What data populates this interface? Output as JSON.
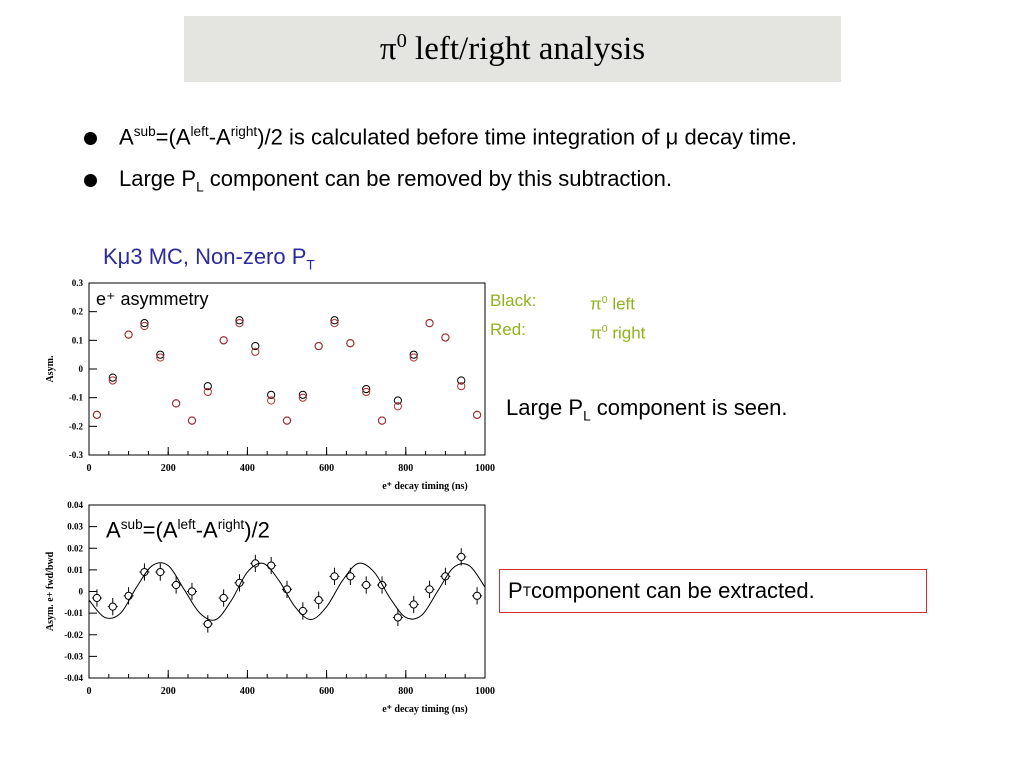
{
  "title": {
    "symbol": "π",
    "sup": "0",
    "text": " left/right analysis"
  },
  "bullets": [
    {
      "a": "A",
      "sub_sup": "sub",
      "b": "=(A",
      "left_sup": "left",
      "c": "-A",
      "right_sup": "right",
      "d": ")/2  is calculated before time integration of ",
      "mu": "μ",
      "e": " decay time."
    },
    {
      "a": "Large P",
      "sub": "L",
      "b": " component can be removed by this subtraction."
    }
  ],
  "mc_label": {
    "a": "Kμ3 MC, Non-zero P",
    "sub": "T"
  },
  "legend": {
    "black_key": "Black:",
    "black_sym": "π",
    "black_sup": "0",
    "black_text": " left",
    "red_key": "Red:",
    "red_sym": "π",
    "red_sup": "0",
    "red_text": " right"
  },
  "note1": {
    "a": "Large P",
    "sub": "L",
    "b": " component is seen."
  },
  "note2": {
    "a": "P",
    "sub": "T",
    "b": " component can be extracted."
  },
  "colors": {
    "accent_blue": "#2b2b9e",
    "legend_green": "#8fb31d",
    "box_red": "#d23030",
    "red_points": "#b03030"
  },
  "chart_data": [
    {
      "type": "scatter",
      "annotation": "e⁺ asymmetry",
      "xlabel": "e⁺ decay timing (ns)",
      "ylabel": "Asym.",
      "xlim": [
        0,
        1000
      ],
      "ylim": [
        -0.3,
        0.3
      ],
      "xticks": [
        "0",
        "200",
        "400",
        "600",
        "800",
        "1000"
      ],
      "yticks": [
        "-0.3",
        "-0.2",
        "-0.1",
        "0",
        "0.1",
        "0.2",
        "0.3"
      ],
      "series": [
        {
          "name": "π0 left",
          "color": "#000000",
          "x": [
            20,
            60,
            100,
            140,
            180,
            220,
            260,
            300,
            340,
            380,
            420,
            460,
            500,
            540,
            580,
            620,
            660,
            700,
            740,
            780,
            820,
            860,
            900,
            940,
            980
          ],
          "y": [
            -0.16,
            -0.03,
            0.12,
            0.16,
            0.05,
            -0.12,
            -0.18,
            -0.06,
            0.1,
            0.17,
            0.08,
            -0.09,
            -0.18,
            -0.09,
            0.08,
            0.17,
            0.09,
            -0.07,
            -0.18,
            -0.11,
            0.05,
            0.16,
            0.11,
            -0.04,
            -0.16
          ]
        },
        {
          "name": "π0 right",
          "color": "#b03030",
          "x": [
            20,
            60,
            100,
            140,
            180,
            220,
            260,
            300,
            340,
            380,
            420,
            460,
            500,
            540,
            580,
            620,
            660,
            700,
            740,
            780,
            820,
            860,
            900,
            940,
            980
          ],
          "y": [
            -0.16,
            -0.04,
            0.12,
            0.15,
            0.04,
            -0.12,
            -0.18,
            -0.08,
            0.1,
            0.16,
            0.06,
            -0.11,
            -0.18,
            -0.1,
            0.08,
            0.16,
            0.09,
            -0.08,
            -0.18,
            -0.13,
            0.04,
            0.16,
            0.11,
            -0.06,
            -0.16
          ]
        }
      ]
    },
    {
      "type": "scatter",
      "annotation": "A^sub=(A^left-A^right)/2",
      "xlabel": "e⁺ decay timing (ns)",
      "ylabel": "Asym.   e+ fwd/bwd",
      "xlim": [
        0,
        1000
      ],
      "ylim": [
        -0.04,
        0.04
      ],
      "xticks": [
        "0",
        "200",
        "400",
        "600",
        "800",
        "1000"
      ],
      "yticks": [
        "-0.04",
        "-0.03",
        "-0.02",
        "-0.01",
        "0",
        "0.01",
        "0.02",
        "0.03",
        "0.04"
      ],
      "series": [
        {
          "name": "data",
          "x": [
            20,
            60,
            100,
            140,
            180,
            220,
            260,
            300,
            340,
            380,
            420,
            460,
            500,
            540,
            580,
            620,
            660,
            700,
            740,
            780,
            820,
            860,
            900,
            940,
            980
          ],
          "y": [
            -0.003,
            -0.007,
            -0.002,
            0.009,
            0.009,
            0.003,
            0.0,
            -0.015,
            -0.003,
            0.004,
            0.013,
            0.012,
            0.001,
            -0.009,
            -0.004,
            0.007,
            0.007,
            0.003,
            0.003,
            -0.012,
            -0.006,
            0.001,
            0.007,
            0.016,
            -0.002
          ],
          "err": [
            0.004,
            0.004,
            0.004,
            0.004,
            0.004,
            0.004,
            0.004,
            0.004,
            0.004,
            0.004,
            0.004,
            0.004,
            0.004,
            0.004,
            0.004,
            0.004,
            0.004,
            0.004,
            0.004,
            0.004,
            0.004,
            0.004,
            0.004,
            0.004,
            0.004
          ]
        },
        {
          "name": "fit",
          "type": "line",
          "x": [
            0,
            40,
            80,
            120,
            160,
            200,
            240,
            280,
            320,
            360,
            400,
            440,
            480,
            520,
            560,
            600,
            640,
            680,
            720,
            760,
            800,
            840,
            880,
            920,
            960,
            1000
          ],
          "y": [
            -0.004,
            -0.012,
            -0.01,
            0.002,
            0.012,
            0.012,
            0.001,
            -0.01,
            -0.013,
            -0.004,
            0.009,
            0.013,
            0.005,
            -0.007,
            -0.013,
            -0.007,
            0.005,
            0.013,
            0.009,
            -0.003,
            -0.012,
            -0.011,
            0.0,
            0.011,
            0.012,
            0.002
          ]
        }
      ]
    }
  ]
}
